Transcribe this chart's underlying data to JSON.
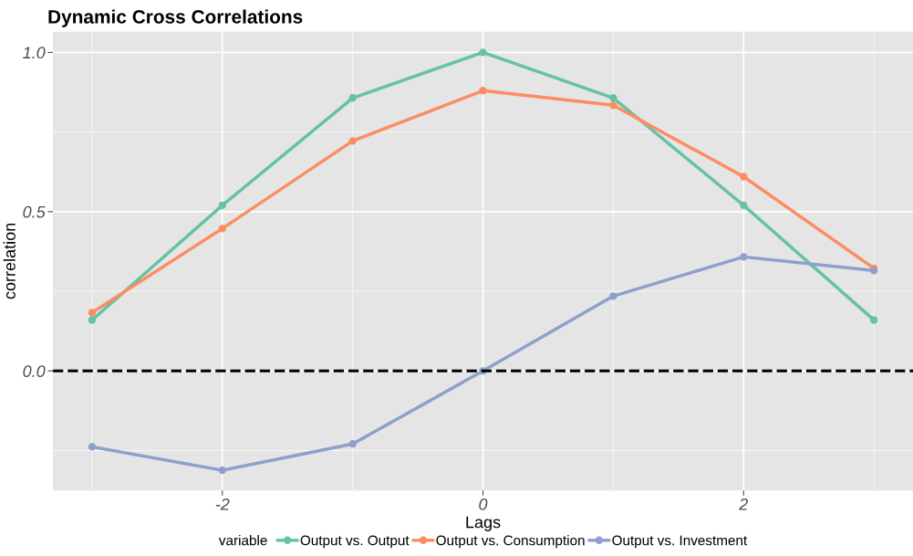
{
  "chart_data": {
    "type": "line",
    "title": "Dynamic Cross Correlations",
    "xlabel": "Lags",
    "ylabel": "correlation",
    "legend_title": "variable",
    "x": [
      -3,
      -2,
      -1,
      0,
      1,
      2,
      3
    ],
    "series": [
      {
        "name": "Output vs. Output",
        "color": "#66c2a5",
        "values": [
          0.16,
          0.52,
          0.857,
          1.0,
          0.857,
          0.52,
          0.16
        ]
      },
      {
        "name": "Output vs. Consumption",
        "color": "#fc8d62",
        "values": [
          0.183,
          0.447,
          0.722,
          0.88,
          0.834,
          0.61,
          0.322
        ]
      },
      {
        "name": "Output vs. Investment",
        "color": "#8da0cb",
        "values": [
          -0.238,
          -0.312,
          -0.229,
          0.0,
          0.235,
          0.358,
          0.315
        ]
      }
    ],
    "xlim": [
      -3.3,
      3.3
    ],
    "xticks": [
      -2,
      0,
      2
    ],
    "ylim": [
      -0.375,
      1.065
    ],
    "yticks": [
      {
        "value": 0,
        "label": "0.0"
      },
      {
        "value": 0.5,
        "label": "0.5"
      },
      {
        "value": 1,
        "label": "1.0"
      }
    ],
    "ref_lines": [
      {
        "axis": "y",
        "value": 0,
        "color": "#000000",
        "line_style": "dashed"
      }
    ],
    "grid": true,
    "legend": "bottom",
    "marker": "circle",
    "line_style": "solid"
  }
}
